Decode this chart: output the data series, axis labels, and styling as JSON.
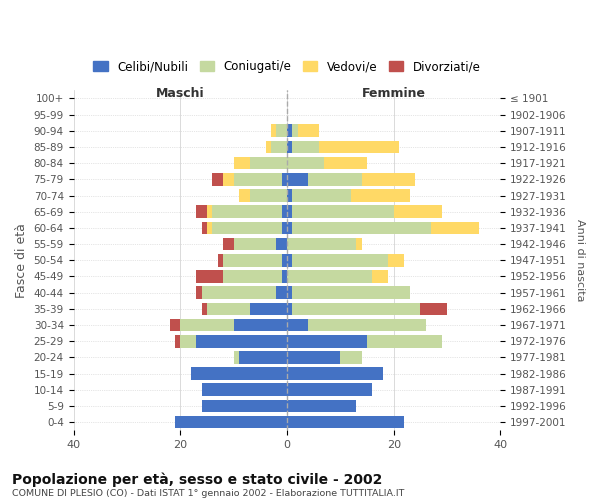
{
  "age_groups": [
    "0-4",
    "5-9",
    "10-14",
    "15-19",
    "20-24",
    "25-29",
    "30-34",
    "35-39",
    "40-44",
    "45-49",
    "50-54",
    "55-59",
    "60-64",
    "65-69",
    "70-74",
    "75-79",
    "80-84",
    "85-89",
    "90-94",
    "95-99",
    "100+"
  ],
  "birth_years": [
    "1997-2001",
    "1992-1996",
    "1987-1991",
    "1982-1986",
    "1977-1981",
    "1972-1976",
    "1967-1971",
    "1962-1966",
    "1957-1961",
    "1952-1956",
    "1947-1951",
    "1942-1946",
    "1937-1941",
    "1932-1936",
    "1927-1931",
    "1922-1926",
    "1917-1921",
    "1912-1916",
    "1907-1911",
    "1902-1906",
    "≤ 1901"
  ],
  "males": {
    "celibi": [
      21,
      16,
      16,
      18,
      9,
      17,
      10,
      7,
      2,
      1,
      1,
      2,
      1,
      1,
      0,
      1,
      0,
      0,
      0,
      0,
      0
    ],
    "coniugati": [
      0,
      0,
      0,
      0,
      1,
      3,
      10,
      8,
      14,
      11,
      11,
      8,
      13,
      13,
      7,
      9,
      7,
      3,
      2,
      0,
      0
    ],
    "vedovi": [
      0,
      0,
      0,
      0,
      0,
      0,
      0,
      0,
      0,
      0,
      0,
      0,
      1,
      1,
      2,
      2,
      3,
      1,
      1,
      0,
      0
    ],
    "divorziati": [
      0,
      0,
      0,
      0,
      0,
      1,
      2,
      1,
      1,
      5,
      1,
      2,
      1,
      2,
      0,
      2,
      0,
      0,
      0,
      0,
      0
    ]
  },
  "females": {
    "nubili": [
      22,
      13,
      16,
      18,
      10,
      15,
      4,
      1,
      1,
      0,
      1,
      0,
      1,
      1,
      1,
      4,
      0,
      1,
      1,
      0,
      0
    ],
    "coniugate": [
      0,
      0,
      0,
      0,
      4,
      14,
      22,
      24,
      22,
      16,
      18,
      13,
      26,
      19,
      11,
      10,
      7,
      5,
      1,
      0,
      0
    ],
    "vedove": [
      0,
      0,
      0,
      0,
      0,
      0,
      0,
      0,
      0,
      3,
      3,
      1,
      9,
      9,
      11,
      10,
      8,
      15,
      4,
      0,
      0
    ],
    "divorziate": [
      0,
      0,
      0,
      0,
      0,
      0,
      0,
      5,
      0,
      0,
      0,
      0,
      0,
      0,
      0,
      0,
      0,
      0,
      0,
      0,
      0
    ]
  },
  "colors": {
    "celibi": "#4472C4",
    "coniugati": "#c5d9a0",
    "vedovi": "#FFD966",
    "divorziati": "#C0504D"
  },
  "title": "Popolazione per età, sesso e stato civile - 2002",
  "subtitle": "COMUNE DI PLESIO (CO) - Dati ISTAT 1° gennaio 2002 - Elaborazione TUTTITALIA.IT",
  "xlabel_maschi": "Maschi",
  "xlabel_femmine": "Femmine",
  "ylabel_left": "Fasce di età",
  "ylabel_right": "Anni di nascita",
  "xlim": 40,
  "legend_labels": [
    "Celibi/Nubili",
    "Coniugati/e",
    "Vedovi/e",
    "Divorziati/e"
  ],
  "bg_color": "#ffffff"
}
